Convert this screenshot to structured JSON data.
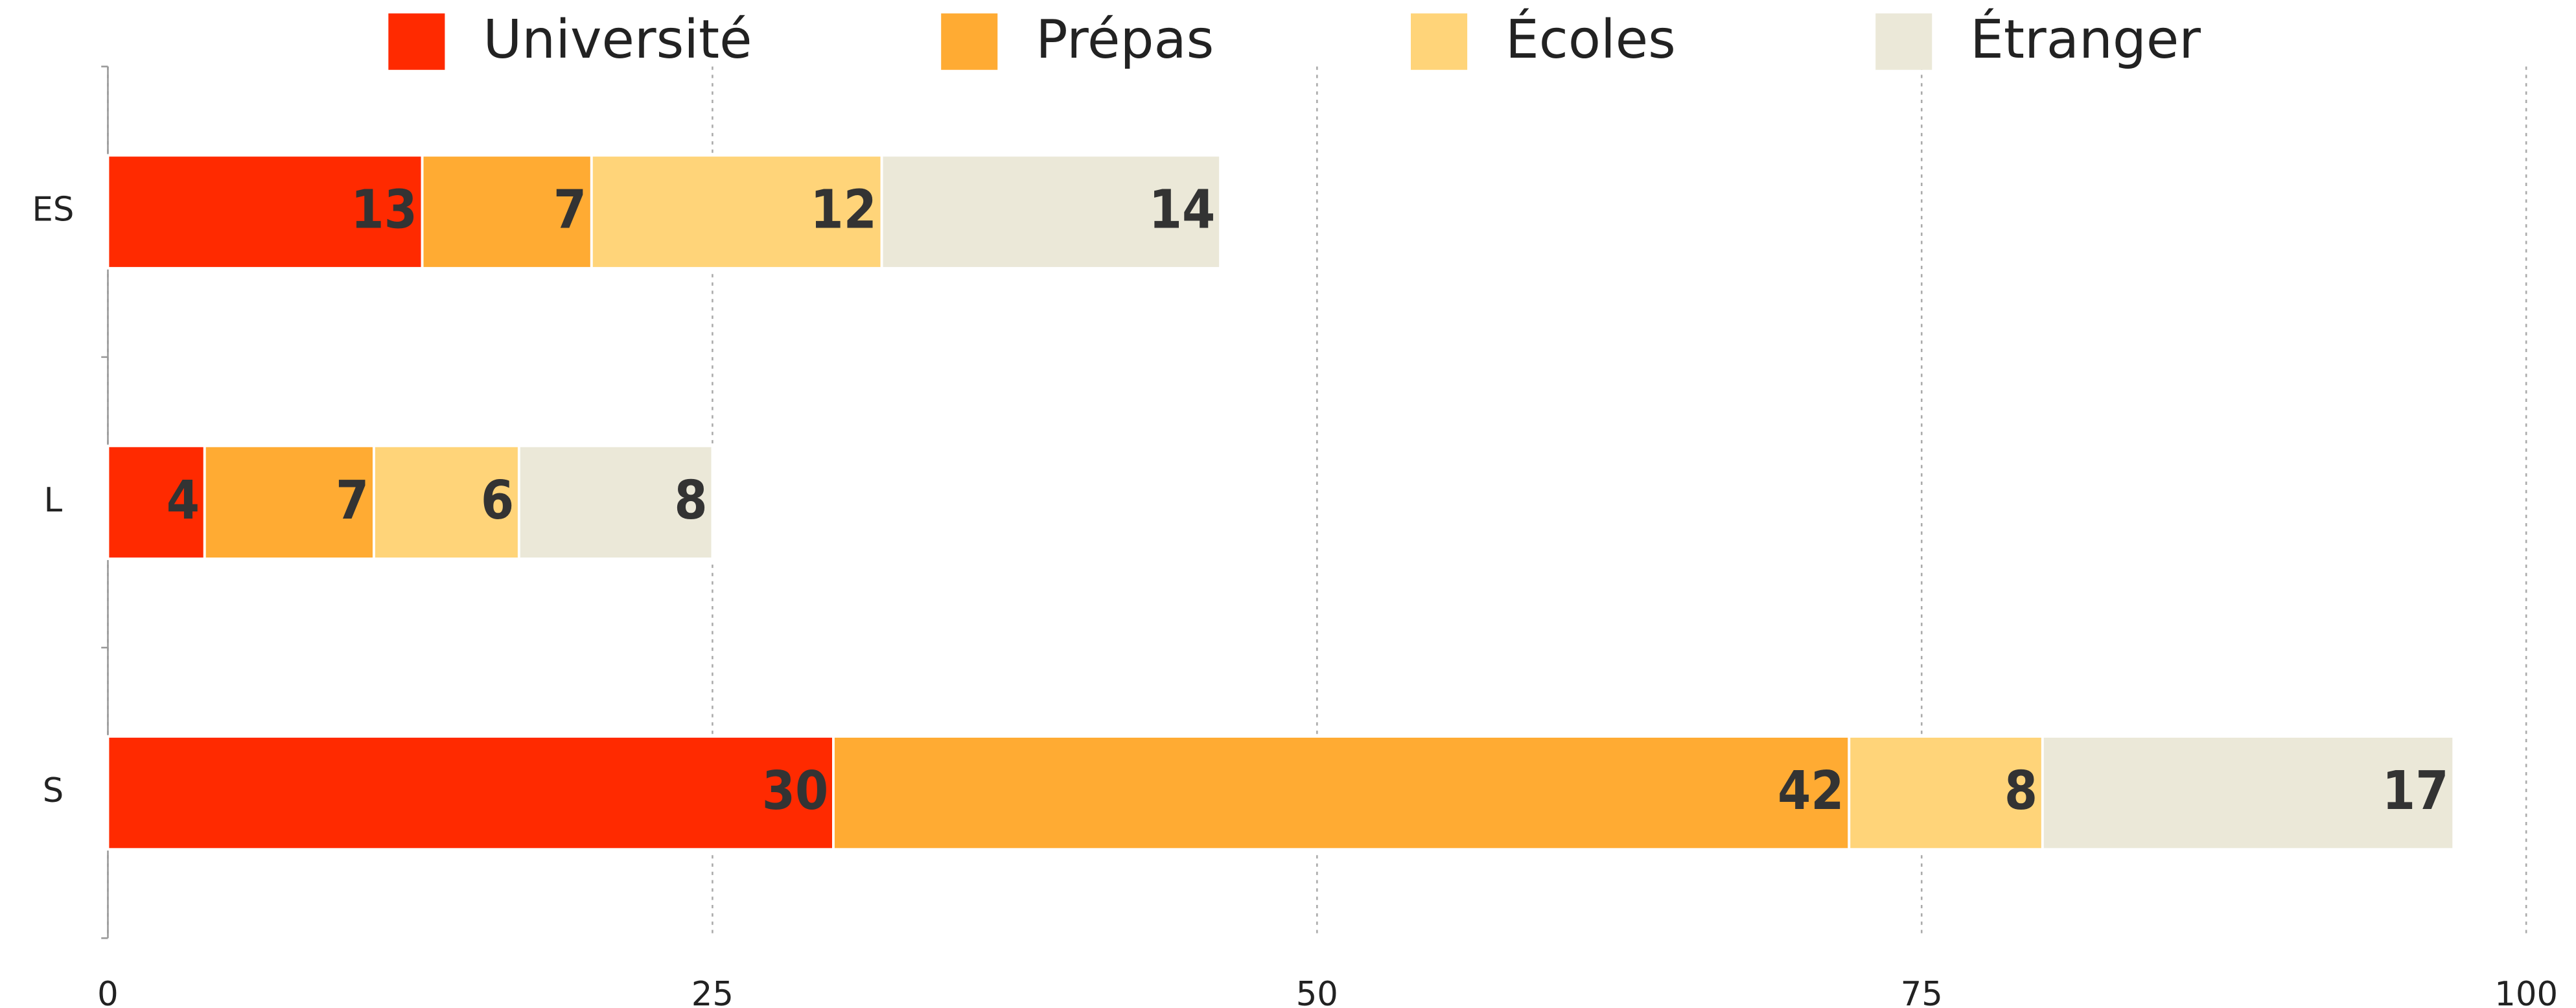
{
  "chart_data": {
    "type": "stacked-bar-horizontal",
    "categories": [
      "ES",
      "L",
      "S"
    ],
    "series": [
      {
        "name": "Université",
        "color": "#ff2a00",
        "values": [
          13,
          4,
          30
        ]
      },
      {
        "name": "Prépas",
        "color": "#ffab33",
        "values": [
          7,
          7,
          42
        ]
      },
      {
        "name": "Écoles",
        "color": "#ffd479",
        "values": [
          12,
          6,
          8
        ]
      },
      {
        "name": "Étranger",
        "color": "#ebe8d8",
        "values": [
          14,
          8,
          17
        ]
      }
    ],
    "xlim": [
      0,
      100
    ],
    "xticks": [
      0,
      25,
      50,
      75,
      100
    ],
    "grid": true,
    "legend": "top"
  }
}
